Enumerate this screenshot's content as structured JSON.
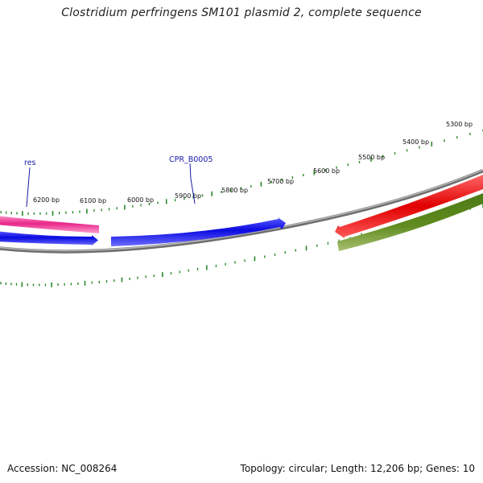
{
  "title": "Clostridium perfringens SM101 plasmid 2, complete sequence",
  "footer": {
    "accession": "Accession: NC_008264",
    "summary": "Topology: circular; Length: 12,206 bp; Genes: 10"
  },
  "ruler_labels": [
    "6200 bp",
    "6100 bp",
    "6000 bp",
    "5900 bp",
    "5800 bp",
    "5700 bp",
    "5600 bp",
    "5500 bp",
    "5400 bp",
    "5300 bp"
  ],
  "gene_labels": {
    "res": "res",
    "cpr": "CPR_B0005"
  },
  "colors": {
    "ruler": "#2a8a2a",
    "backbone": "#8c8c8c",
    "res_feature": "#e8288a",
    "cds_forward": "#1010e0",
    "cds_red": "#ee0000",
    "cds_olive": "#5f8a1e",
    "label_text": "#1a1aa8"
  }
}
